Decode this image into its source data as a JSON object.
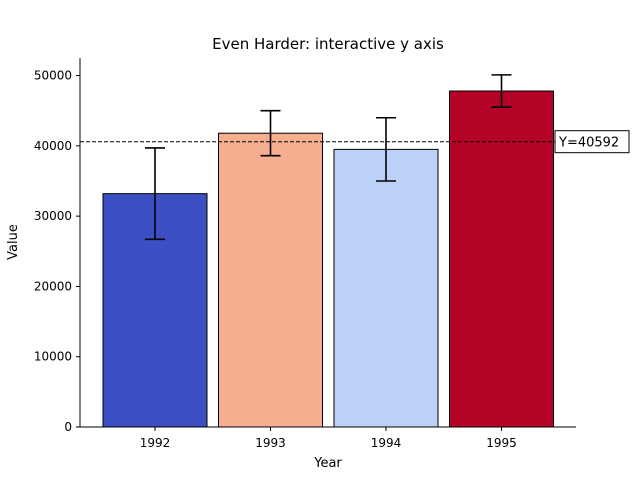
{
  "chart_data": {
    "type": "bar",
    "title": "Even Harder: interactive y axis",
    "xlabel": "Year",
    "ylabel": "Value",
    "categories": [
      "1992",
      "1993",
      "1994",
      "1995"
    ],
    "values": [
      33200,
      41800,
      39500,
      47800
    ],
    "errors": [
      6500,
      3200,
      4500,
      2300
    ],
    "colors": [
      "#3c4fc5",
      "#f5ae8f",
      "#bcd0f8",
      "#b40326"
    ],
    "ylim": [
      0,
      52500
    ],
    "yticks": [
      0,
      10000,
      20000,
      30000,
      40000,
      50000
    ],
    "reference_line": {
      "value": 40592,
      "label": "Y=40592"
    },
    "grid": false,
    "legend": "none"
  }
}
